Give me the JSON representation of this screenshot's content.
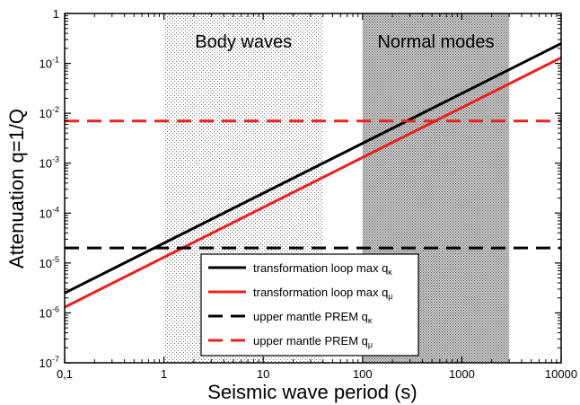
{
  "chart_data": {
    "type": "line",
    "xlabel": "Seismic wave period (s)",
    "ylabel": "Attenuation q=1/Q",
    "xscale": "log",
    "yscale": "log",
    "xlim": [
      0.1,
      10000
    ],
    "ylim": [
      1e-07,
      1
    ],
    "x_tick_values": [
      0.1,
      1,
      10,
      100,
      1000,
      10000
    ],
    "x_tick_labels": [
      "0,1",
      "1",
      "10",
      "100",
      "1000",
      "10000"
    ],
    "y_tick_values": [
      1e-07,
      1e-06,
      1e-05,
      0.0001,
      0.001,
      0.01,
      0.1,
      1
    ],
    "y_tick_labels": [
      {
        "base": "10",
        "exp": "-7"
      },
      {
        "base": "10",
        "exp": "-6"
      },
      {
        "base": "10",
        "exp": "-5"
      },
      {
        "base": "10",
        "exp": "-4"
      },
      {
        "base": "10",
        "exp": "-3"
      },
      {
        "base": "10",
        "exp": "-2"
      },
      {
        "base": "10",
        "exp": "-1"
      },
      {
        "base": "1",
        "exp": ""
      }
    ],
    "grid": false,
    "legend_position": "bottom-center",
    "regions": [
      {
        "label": "Body waves",
        "x_range": [
          1,
          40
        ],
        "shade": "light-stipple"
      },
      {
        "label": "Normal modes",
        "x_range": [
          100,
          3000
        ],
        "shade": "dark-stipple"
      }
    ],
    "series": [
      {
        "name_main": "transformation loop max q",
        "name_sub": "κ",
        "color": "#000000",
        "dash": "solid",
        "x": [
          0.1,
          10000
        ],
        "y": [
          2.5e-06,
          0.25
        ]
      },
      {
        "name_main": "transformation loop max q",
        "name_sub": "μ",
        "color": "#e8231f",
        "dash": "solid",
        "x": [
          0.1,
          10000
        ],
        "y": [
          1.3e-06,
          0.13
        ]
      },
      {
        "name_main": "upper mantle PREM q",
        "name_sub": "κ",
        "color": "#000000",
        "dash": "dashed",
        "x": [
          0.1,
          10000
        ],
        "y": [
          2e-05,
          2e-05
        ]
      },
      {
        "name_main": "upper mantle PREM q",
        "name_sub": "μ",
        "color": "#e8231f",
        "dash": "dashed",
        "x": [
          0.1,
          10000
        ],
        "y": [
          0.007,
          0.007
        ]
      }
    ]
  }
}
